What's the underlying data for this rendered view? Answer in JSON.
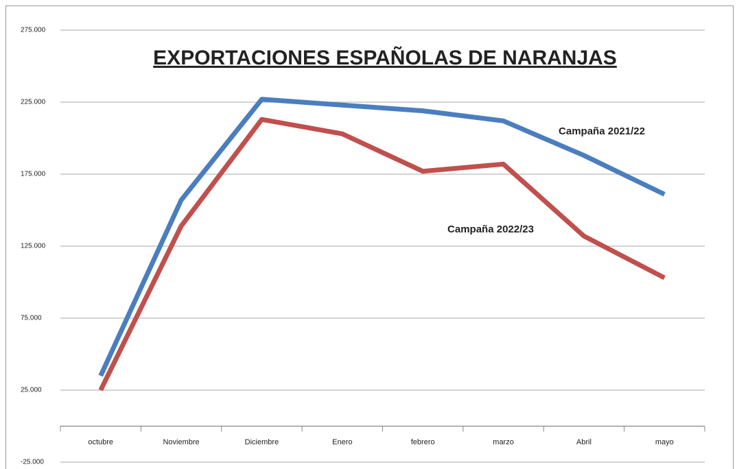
{
  "chart_data": {
    "type": "line",
    "title": "EXPORTACIONES ESPAÑOLAS DE NARANJAS",
    "categories": [
      "octubre",
      "Noviembre",
      "Diciembre",
      "Enero",
      "febrero",
      "marzo",
      "Abril",
      "mayo"
    ],
    "series": [
      {
        "name": "Campaña 2021/22",
        "color": "#4a7ebf",
        "values": [
          35000,
          157000,
          227000,
          223000,
          219000,
          212000,
          188000,
          161000
        ]
      },
      {
        "name": "Campaña 2022/23",
        "color": "#c0504d",
        "values": [
          25000,
          139000,
          213000,
          203000,
          177000,
          182000,
          132000,
          103000
        ]
      }
    ],
    "ylim": [
      -25000,
      275000
    ],
    "yticks": [
      {
        "value": -25000,
        "label": "-25.000"
      },
      {
        "value": 25000,
        "label": "25.000"
      },
      {
        "value": 75000,
        "label": "75.000"
      },
      {
        "value": 125000,
        "label": "125.000"
      },
      {
        "value": 175000,
        "label": "175.000"
      },
      {
        "value": 225000,
        "label": "225.000"
      },
      {
        "value": 275000,
        "label": "275.000"
      }
    ],
    "grid": true
  }
}
